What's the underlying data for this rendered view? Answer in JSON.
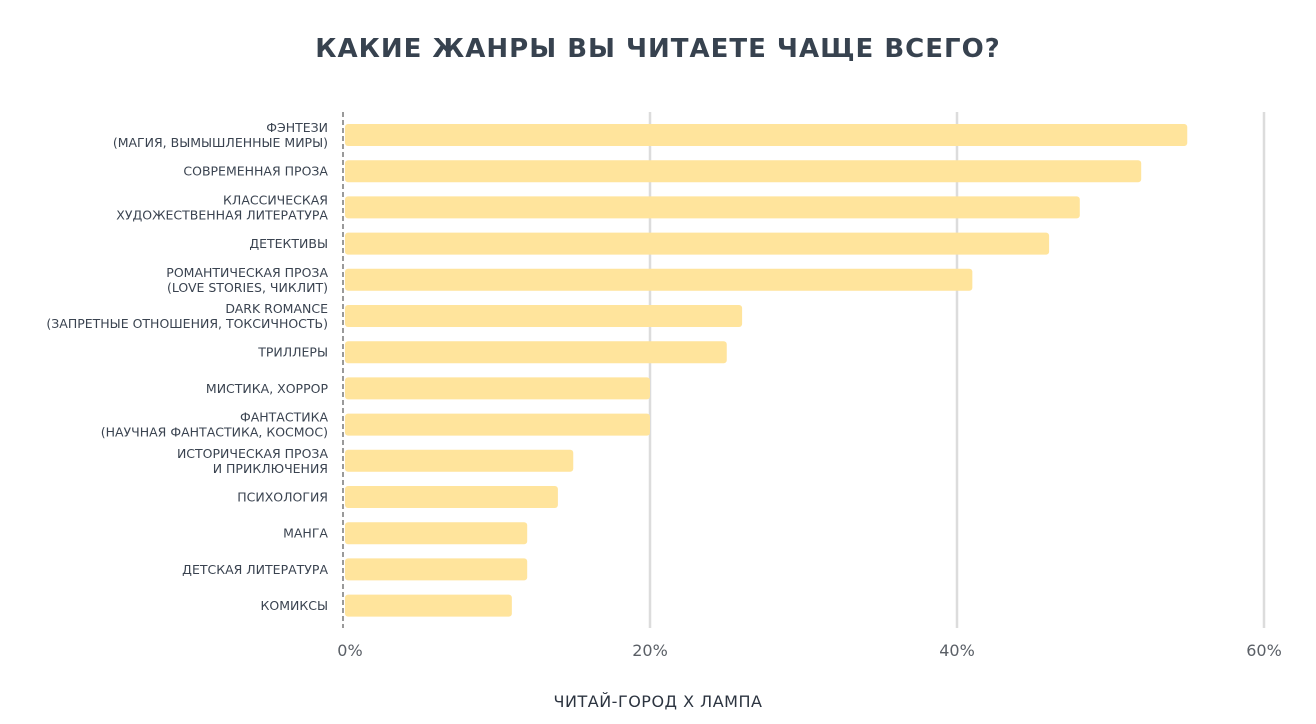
{
  "chart_data": {
    "type": "bar",
    "orientation": "horizontal",
    "title": "КАКИЕ ЖАНРЫ ВЫ ЧИТАЕТЕ ЧАЩЕ ВСЕГО?",
    "source": "ЧИТАЙ-ГОРОД X ЛАМПА",
    "categories": [
      [
        "ФЭНТЕЗИ",
        "(МАГИЯ, ВЫМЫШЛЕННЫЕ МИРЫ)"
      ],
      [
        "СОВРЕМЕННАЯ ПРОЗА"
      ],
      [
        "КЛАССИЧЕСКАЯ",
        "ХУДОЖЕСТВЕННАЯ ЛИТЕРАТУРА"
      ],
      [
        "ДЕТЕКТИВЫ"
      ],
      [
        "РОМАНТИЧЕСКАЯ ПРОЗА",
        "(LOVE STORIES, ЧИКЛИТ)"
      ],
      [
        "DARK ROMANCE",
        "(ЗАПРЕТНЫЕ ОТНОШЕНИЯ, ТОКСИЧНОСТЬ)"
      ],
      [
        "ТРИЛЛЕРЫ"
      ],
      [
        "МИСТИКА, ХОРРОР"
      ],
      [
        "ФАНТАСТИКА",
        "(НАУЧНАЯ ФАНТАСТИКА, КОСМОС)"
      ],
      [
        "ИСТОРИЧЕСКАЯ ПРОЗА",
        "И ПРИКЛЮЧЕНИЯ"
      ],
      [
        "ПСИХОЛОГИЯ"
      ],
      [
        "МАНГА"
      ],
      [
        "ДЕТСКАЯ ЛИТЕРАТУРА"
      ],
      [
        "КОМИКСЫ"
      ]
    ],
    "values": [
      55,
      52,
      48,
      46,
      41,
      26,
      25,
      20,
      20,
      15,
      14,
      12,
      12,
      11
    ],
    "unit": "%",
    "xlim": [
      0,
      60
    ],
    "xticks": [
      0,
      20,
      40,
      60
    ],
    "xtick_labels": [
      "0%",
      "20%",
      "40%",
      "60%"
    ],
    "grid": true,
    "bar_color": "#FFE49C",
    "title_color": "#37424F"
  }
}
